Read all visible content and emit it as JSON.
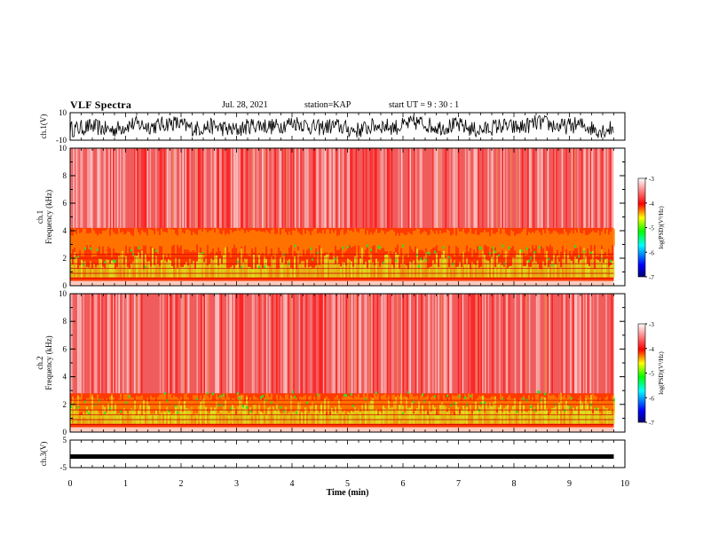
{
  "header": {
    "title": "VLF Spectra",
    "date": "Jul. 28, 2021",
    "station": "station=KAP",
    "start": "start UT =  9 : 30 : 1"
  },
  "chart_data": [
    {
      "type": "line",
      "panel": "ch1-waveform",
      "ylabel": "ch.1(V)",
      "ylim": [
        -10,
        10
      ],
      "yticks": [
        "10",
        "-10"
      ],
      "xlim": [
        0,
        10
      ],
      "description_of_trace": "dense voltage waveform spanning roughly -8 to +8 V",
      "color": "#000000"
    },
    {
      "type": "heatmap",
      "panel": "ch1-spectrogram",
      "ylabel": "ch.1",
      "ylabel2": "Frequency (kHz)",
      "ylim": [
        0,
        10
      ],
      "yticks": [
        "0",
        "2",
        "4",
        "6",
        "8",
        "10"
      ],
      "xlim": [
        0,
        10
      ],
      "data_extent_min": 9.8,
      "colorbar": {
        "label": "log(PSD)(V²/Hz)",
        "range": [
          -7,
          -3
        ],
        "ticks": [
          "-3",
          "-4",
          "-5",
          "-6",
          "-7"
        ],
        "colors": [
          "#000080",
          "#0000ff",
          "#00ffff",
          "#00ff00",
          "#ffff00",
          "#ff0000",
          "#ffffff"
        ]
      }
    },
    {
      "type": "heatmap",
      "panel": "ch2-spectrogram",
      "ylabel": "ch.2",
      "ylabel2": "Frequency (kHz)",
      "ylim": [
        0,
        10
      ],
      "yticks": [
        "0",
        "2",
        "4",
        "6",
        "8",
        "10"
      ],
      "xlim": [
        0,
        10
      ],
      "data_extent_min": 9.8,
      "colorbar": {
        "label": "log(PSD)(V²/Hz)",
        "range": [
          -7,
          -3
        ],
        "ticks": [
          "-3",
          "-4",
          "-5",
          "-6",
          "-7"
        ]
      }
    },
    {
      "type": "line",
      "panel": "ch3-waveform",
      "ylabel": "ch.3(V)",
      "ylim": [
        -5,
        5
      ],
      "yticks": [
        "5",
        "-5"
      ],
      "xlim": [
        0,
        10
      ],
      "trace_level": -1,
      "color": "#000000"
    }
  ],
  "xaxis": {
    "label": "Time (min)",
    "ticks": [
      "0",
      "1",
      "2",
      "3",
      "4",
      "5",
      "6",
      "7",
      "8",
      "9",
      "10"
    ]
  }
}
